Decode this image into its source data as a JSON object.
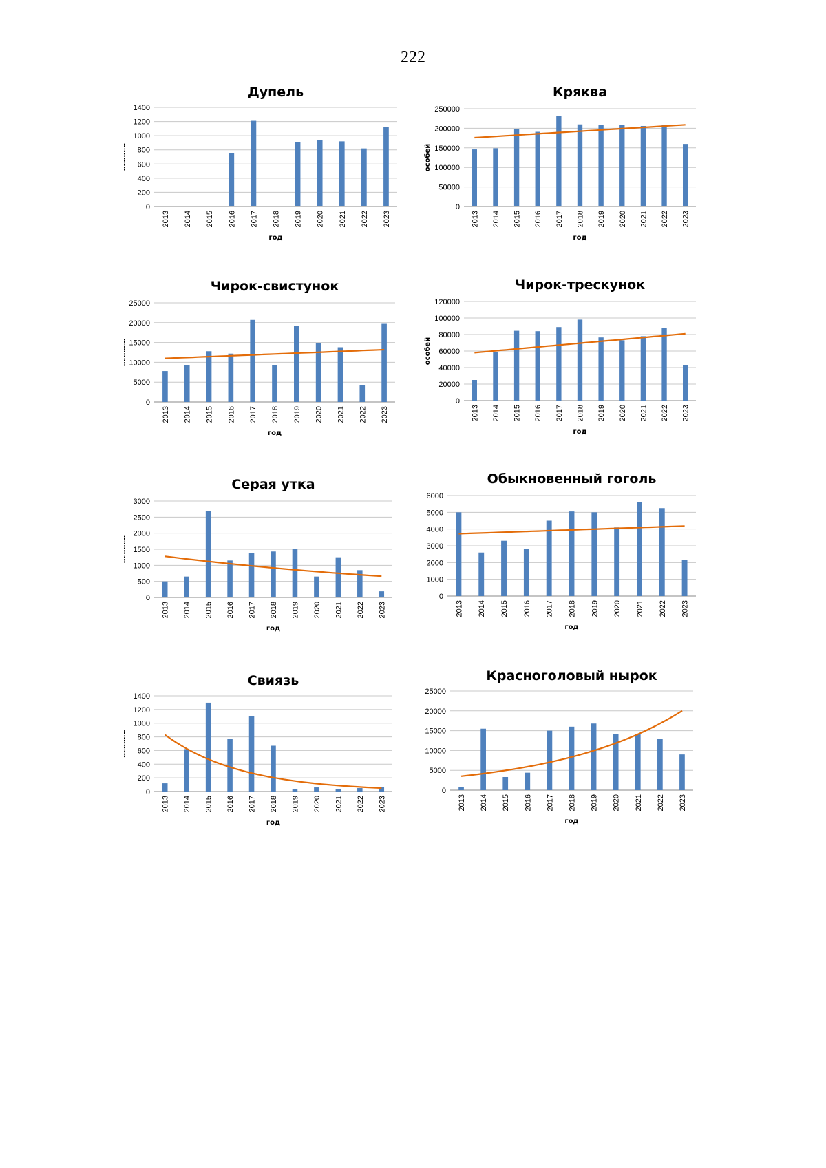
{
  "page": {
    "number": "222"
  },
  "colors": {
    "bar": "#4f81bd",
    "trend": "#e36c09",
    "grid": "#c8c8c8"
  },
  "chart_data": [
    {
      "type": "bar",
      "title": "Дупель",
      "xlabel": "год",
      "ylabel": "особей",
      "categories": [
        "2013",
        "2014",
        "2015",
        "2016",
        "2017",
        "2018",
        "2019",
        "2020",
        "2021",
        "2022",
        "2023"
      ],
      "values": [
        0,
        0,
        0,
        750,
        1210,
        0,
        910,
        940,
        920,
        820,
        1120
      ],
      "ylim": [
        0,
        1400
      ],
      "yticks": [
        0,
        200,
        400,
        600,
        800,
        1000,
        1200,
        1400
      ],
      "trend": null,
      "grid": true,
      "legend": "none"
    },
    {
      "type": "bar",
      "title": "Кряква",
      "xlabel": "год",
      "ylabel": "особей",
      "categories": [
        "2013",
        "2014",
        "2015",
        "2016",
        "2017",
        "2018",
        "2019",
        "2020",
        "2021",
        "2022",
        "2023"
      ],
      "values": [
        146000,
        149000,
        198000,
        191000,
        231000,
        210000,
        208000,
        208000,
        206000,
        208000,
        160000
      ],
      "ylim": [
        0,
        250000
      ],
      "yticks": [
        0,
        50000,
        100000,
        150000,
        200000,
        250000
      ],
      "trend": {
        "kind": "linear",
        "points": [
          176000,
          209000
        ]
      },
      "grid": true,
      "legend": "none"
    },
    {
      "type": "bar",
      "title": "Чирок-свистунок",
      "xlabel": "год",
      "ylabel": "особей",
      "categories": [
        "2013",
        "2014",
        "2015",
        "2016",
        "2017",
        "2018",
        "2019",
        "2020",
        "2021",
        "2022",
        "2023"
      ],
      "values": [
        7800,
        9200,
        12800,
        12200,
        20700,
        9300,
        19100,
        14800,
        13800,
        4200,
        19700
      ],
      "ylim": [
        0,
        25000
      ],
      "yticks": [
        0,
        5000,
        10000,
        15000,
        20000,
        25000
      ],
      "trend": {
        "kind": "linear",
        "points": [
          11000,
          13200
        ]
      },
      "grid": true,
      "legend": "none"
    },
    {
      "type": "bar",
      "title": "Чирок-трескунок",
      "xlabel": "год",
      "ylabel": "особей",
      "categories": [
        "2013",
        "2014",
        "2015",
        "2016",
        "2017",
        "2018",
        "2019",
        "2020",
        "2021",
        "2022",
        "2023"
      ],
      "values": [
        25000,
        59000,
        84500,
        84000,
        89000,
        98000,
        76500,
        73000,
        78000,
        87500,
        43000
      ],
      "ylim": [
        0,
        120000
      ],
      "yticks": [
        0,
        20000,
        40000,
        60000,
        80000,
        100000,
        120000
      ],
      "trend": {
        "kind": "linear",
        "points": [
          58000,
          81000
        ]
      },
      "grid": true,
      "legend": "none"
    },
    {
      "type": "bar",
      "title": "Серая утка",
      "xlabel": "год",
      "ylabel": "особей",
      "categories": [
        "2013",
        "2014",
        "2015",
        "2016",
        "2017",
        "2018",
        "2019",
        "2020",
        "2021",
        "2022",
        "2023"
      ],
      "values": [
        500,
        650,
        2700,
        1150,
        1390,
        1430,
        1510,
        650,
        1250,
        850,
        190
      ],
      "ylim": [
        0,
        3000
      ],
      "yticks": [
        0,
        500,
        1000,
        1500,
        2000,
        2500,
        3000
      ],
      "trend": {
        "kind": "exponential",
        "points": [
          1280,
          660
        ]
      },
      "grid": true,
      "legend": "none"
    },
    {
      "type": "bar",
      "title": "Обыкновенный гоголь",
      "xlabel": "год",
      "ylabel": "особей",
      "categories": [
        "2013",
        "2014",
        "2015",
        "2016",
        "2017",
        "2018",
        "2019",
        "2020",
        "2021",
        "2022",
        "2023"
      ],
      "values": [
        5000,
        2600,
        3300,
        2800,
        4500,
        5050,
        5000,
        4100,
        5600,
        5250,
        2150
      ],
      "ylim": [
        0,
        6000
      ],
      "yticks": [
        0,
        1000,
        2000,
        3000,
        4000,
        5000,
        6000
      ],
      "trend": {
        "kind": "linear",
        "points": [
          3720,
          4180
        ]
      },
      "grid": true,
      "legend": "none"
    },
    {
      "type": "bar",
      "title": "Свиязь",
      "xlabel": "год",
      "ylabel": "особей",
      "categories": [
        "2013",
        "2014",
        "2015",
        "2016",
        "2017",
        "2018",
        "2019",
        "2020",
        "2021",
        "2022",
        "2023"
      ],
      "values": [
        120,
        620,
        1300,
        770,
        1100,
        670,
        30,
        60,
        30,
        50,
        70
      ],
      "ylim": [
        0,
        1400
      ],
      "yticks": [
        0,
        200,
        400,
        600,
        800,
        1000,
        1200,
        1400
      ],
      "trend": {
        "kind": "exponential",
        "points": [
          830,
          50
        ]
      },
      "grid": true,
      "legend": "none"
    },
    {
      "type": "bar",
      "title": "Красноголовый нырок",
      "xlabel": "год",
      "ylabel": "особей",
      "categories": [
        "2013",
        "2014",
        "2015",
        "2016",
        "2017",
        "2018",
        "2019",
        "2020",
        "2021",
        "2022",
        "2023"
      ],
      "values": [
        700,
        15500,
        3300,
        4400,
        15000,
        16000,
        16800,
        14200,
        14200,
        13000,
        9000
      ],
      "ylim": [
        0,
        25000
      ],
      "yticks": [
        0,
        5000,
        10000,
        15000,
        20000,
        25000
      ],
      "trend": {
        "kind": "exponential",
        "points": [
          3500,
          20000
        ]
      },
      "grid": true,
      "legend": "none"
    }
  ]
}
